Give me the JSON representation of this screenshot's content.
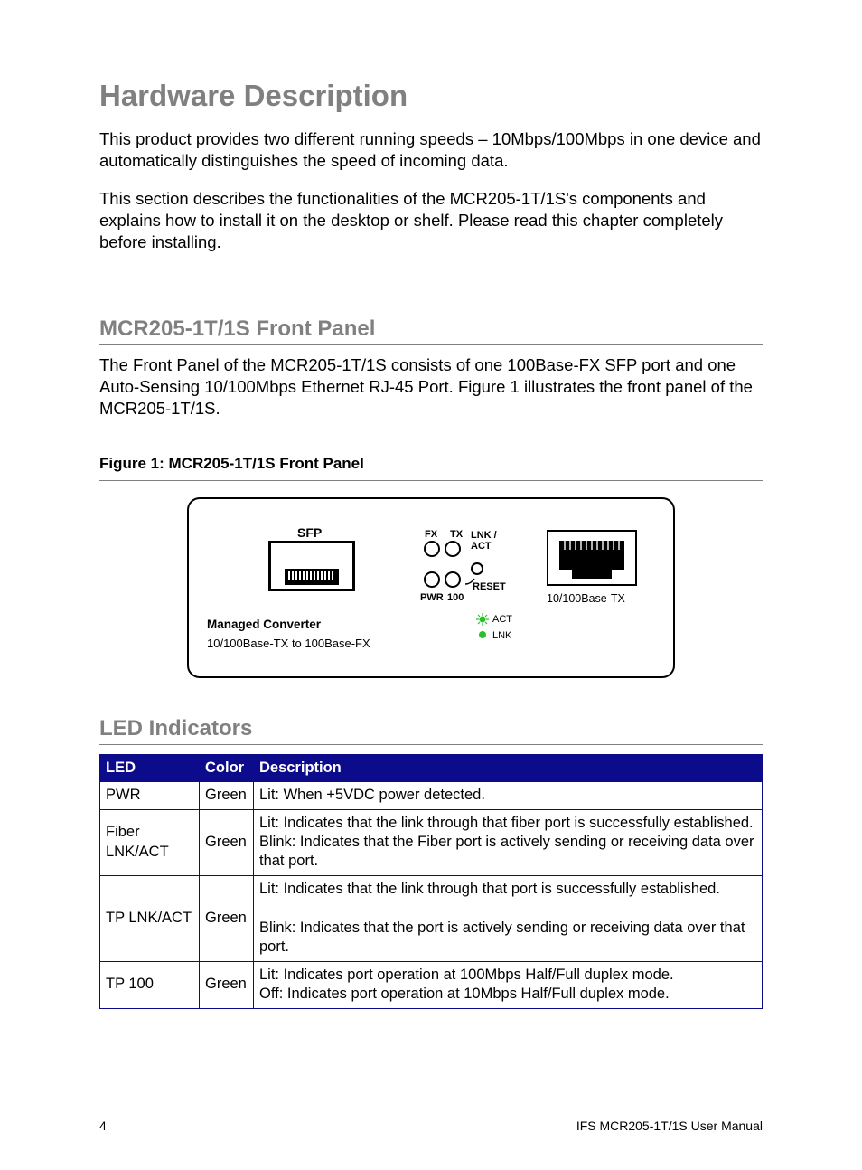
{
  "h1": "Hardware Description",
  "para1": "This product provides two different running speeds – 10Mbps/100Mbps in one device and automatically distinguishes the speed of incoming data.",
  "para2": "This section describes the functionalities of the MCR205-1T/1S's components and explains how to install it on the desktop or shelf. Please read this chapter completely before installing.",
  "h2a": "MCR205-1T/1S Front Panel",
  "para3": "The Front Panel of the MCR205-1T/1S consists of one 100Base-FX SFP port and one Auto-Sensing 10/100Mbps Ethernet RJ-45 Port. Figure 1 illustrates the front panel of the MCR205-1T/1S.",
  "figcap": "Figure 1: MCR205-1T/1S Front Panel",
  "diagram": {
    "sfp": "SFP",
    "mc1": "Managed Converter",
    "mc2": "10/100Base-TX to 100Base-FX",
    "fx": "FX",
    "tx": "TX",
    "lnkact": "LNK /\nACT",
    "reset": "RESET",
    "pwr": "PWR",
    "hundred": "100",
    "act": "ACT",
    "lnk": "LNK",
    "basetx": "10/100Base-TX"
  },
  "h2b": "LED Indicators",
  "table": {
    "header_bg": "#0b0b8c",
    "header_fg": "#ffffff",
    "border_color": "#0b0b8c",
    "columns": [
      "LED",
      "Color",
      "Description"
    ],
    "rows": [
      {
        "led": "PWR",
        "color": "Green",
        "desc": "Lit: When +5VDC power detected."
      },
      {
        "led": "Fiber LNK/ACT",
        "color": "Green",
        "desc": "Lit: Indicates that the link through that fiber port is successfully established.\nBlink: Indicates that the Fiber port is actively sending or receiving data over that port."
      },
      {
        "led": "TP LNK/ACT",
        "color": "Green",
        "desc": "Lit: Indicates that the link through that port is successfully established.\n\nBlink: Indicates that the port is actively sending or receiving data over that port."
      },
      {
        "led": "TP 100",
        "color": "Green",
        "desc": "Lit: Indicates port operation at 100Mbps Half/Full duplex mode.\nOff: Indicates port operation at 10Mbps Half/Full duplex mode."
      }
    ]
  },
  "footer": {
    "page": "4",
    "title": "IFS MCR205-1T/1S User Manual"
  }
}
